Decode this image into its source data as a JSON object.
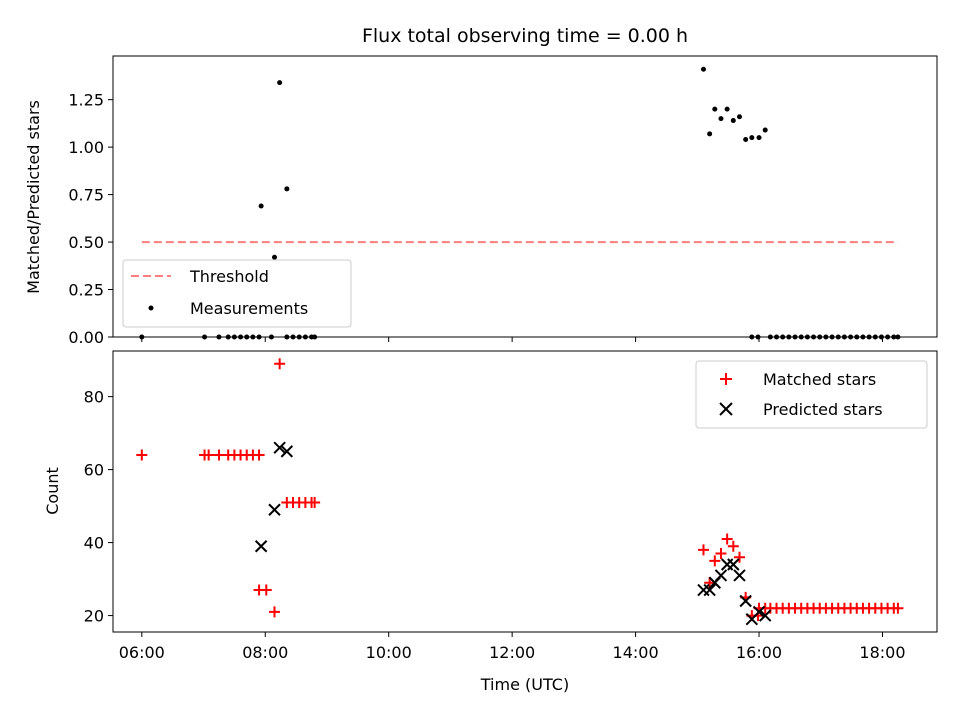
{
  "chart_data": [
    {
      "type": "scatter",
      "title": "Flux total observing time = 0.00 h",
      "xlabel": "",
      "ylabel": "Matched/Predicted stars",
      "xlim": [
        "05:32",
        "18:53"
      ],
      "ylim": [
        0.0,
        1.48
      ],
      "yticks": [
        "0.00",
        "0.25",
        "0.50",
        "0.75",
        "1.00",
        "1.25"
      ],
      "ytick_values": [
        0.0,
        0.25,
        0.5,
        0.75,
        1.0,
        1.25
      ],
      "legend": {
        "location": "lower-left",
        "entries": [
          "Threshold",
          "Measurements"
        ]
      },
      "threshold": {
        "name": "Threshold",
        "y": 0.5,
        "x_start": "06:00",
        "x_end": "18:15",
        "color": "#ff7f7f"
      },
      "measurements": {
        "name": "Measurements",
        "color": "#000000",
        "points": [
          [
            "06:00",
            0.0
          ],
          [
            "07:01",
            0.0
          ],
          [
            "07:15",
            0.0
          ],
          [
            "07:24",
            0.0
          ],
          [
            "07:30",
            0.0
          ],
          [
            "07:36",
            0.0
          ],
          [
            "07:42",
            0.0
          ],
          [
            "07:48",
            0.0
          ],
          [
            "07:54",
            0.0
          ],
          [
            "07:56",
            0.69
          ],
          [
            "08:06",
            0.0
          ],
          [
            "08:09",
            0.42
          ],
          [
            "08:14",
            1.34
          ],
          [
            "08:21",
            0.78
          ],
          [
            "08:21",
            0.0
          ],
          [
            "08:27",
            0.0
          ],
          [
            "08:33",
            0.0
          ],
          [
            "08:39",
            0.0
          ],
          [
            "08:45",
            0.0
          ],
          [
            "08:48",
            0.0
          ],
          [
            "15:06",
            1.41
          ],
          [
            "15:12",
            1.07
          ],
          [
            "15:17",
            1.2
          ],
          [
            "15:23",
            1.15
          ],
          [
            "15:29",
            1.2
          ],
          [
            "15:35",
            1.14
          ],
          [
            "15:41",
            1.16
          ],
          [
            "15:47",
            1.04
          ],
          [
            "15:53",
            1.05
          ],
          [
            "15:53",
            0.0
          ],
          [
            "15:59",
            0.0
          ],
          [
            "16:00",
            1.05
          ],
          [
            "16:06",
            1.09
          ],
          [
            "16:11",
            0.0
          ],
          [
            "16:17",
            0.0
          ],
          [
            "16:23",
            0.0
          ],
          [
            "16:29",
            0.0
          ],
          [
            "16:35",
            0.0
          ],
          [
            "16:41",
            0.0
          ],
          [
            "16:47",
            0.0
          ],
          [
            "16:53",
            0.0
          ],
          [
            "16:59",
            0.0
          ],
          [
            "17:05",
            0.0
          ],
          [
            "17:11",
            0.0
          ],
          [
            "17:17",
            0.0
          ],
          [
            "17:23",
            0.0
          ],
          [
            "17:29",
            0.0
          ],
          [
            "17:35",
            0.0
          ],
          [
            "17:41",
            0.0
          ],
          [
            "17:47",
            0.0
          ],
          [
            "17:53",
            0.0
          ],
          [
            "17:59",
            0.0
          ],
          [
            "18:05",
            0.0
          ],
          [
            "18:11",
            0.0
          ],
          [
            "18:15",
            0.0
          ]
        ]
      }
    },
    {
      "type": "scatter",
      "title": "",
      "xlabel": "Time (UTC)",
      "ylabel": "Count",
      "xlim": [
        "05:32",
        "18:53"
      ],
      "ylim": [
        15.5,
        92.5
      ],
      "yticks": [
        "20",
        "40",
        "60",
        "80"
      ],
      "ytick_values": [
        20,
        40,
        60,
        80
      ],
      "xticks": [
        "06:00",
        "08:00",
        "10:00",
        "12:00",
        "14:00",
        "16:00",
        "18:00"
      ],
      "legend": {
        "location": "top-right",
        "entries": [
          "Matched stars",
          "Predicted stars"
        ]
      },
      "series": [
        {
          "name": "Matched stars",
          "marker": "+",
          "color": "#ff0000",
          "points": [
            [
              "06:00",
              64
            ],
            [
              "07:01",
              64
            ],
            [
              "07:05",
              64
            ],
            [
              "07:15",
              64
            ],
            [
              "07:24",
              64
            ],
            [
              "07:30",
              64
            ],
            [
              "07:36",
              64
            ],
            [
              "07:42",
              64
            ],
            [
              "07:48",
              64
            ],
            [
              "07:54",
              64
            ],
            [
              "07:54",
              27
            ],
            [
              "08:01",
              27
            ],
            [
              "08:09",
              21
            ],
            [
              "08:14",
              89
            ],
            [
              "08:21",
              51
            ],
            [
              "08:27",
              51
            ],
            [
              "08:33",
              51
            ],
            [
              "08:39",
              51
            ],
            [
              "08:45",
              51
            ],
            [
              "08:48",
              51
            ],
            [
              "15:06",
              38
            ],
            [
              "15:12",
              29
            ],
            [
              "15:17",
              35
            ],
            [
              "15:23",
              37
            ],
            [
              "15:29",
              41
            ],
            [
              "15:35",
              39
            ],
            [
              "15:41",
              36
            ],
            [
              "15:47",
              25
            ],
            [
              "15:53",
              20
            ],
            [
              "15:59",
              20
            ],
            [
              "16:00",
              22
            ],
            [
              "16:06",
              22
            ],
            [
              "16:11",
              22
            ],
            [
              "16:17",
              22
            ],
            [
              "16:23",
              22
            ],
            [
              "16:29",
              22
            ],
            [
              "16:35",
              22
            ],
            [
              "16:41",
              22
            ],
            [
              "16:47",
              22
            ],
            [
              "16:53",
              22
            ],
            [
              "16:59",
              22
            ],
            [
              "17:05",
              22
            ],
            [
              "17:11",
              22
            ],
            [
              "17:17",
              22
            ],
            [
              "17:23",
              22
            ],
            [
              "17:29",
              22
            ],
            [
              "17:35",
              22
            ],
            [
              "17:41",
              22
            ],
            [
              "17:47",
              22
            ],
            [
              "17:53",
              22
            ],
            [
              "17:59",
              22
            ],
            [
              "18:05",
              22
            ],
            [
              "18:11",
              22
            ],
            [
              "18:15",
              22
            ]
          ]
        },
        {
          "name": "Predicted stars",
          "marker": "x",
          "color": "#000000",
          "points": [
            [
              "07:56",
              39
            ],
            [
              "08:09",
              49
            ],
            [
              "08:14",
              66
            ],
            [
              "08:21",
              65
            ],
            [
              "15:06",
              27
            ],
            [
              "15:12",
              27
            ],
            [
              "15:17",
              29
            ],
            [
              "15:23",
              31
            ],
            [
              "15:29",
              34
            ],
            [
              "15:35",
              34
            ],
            [
              "15:41",
              31
            ],
            [
              "15:47",
              24
            ],
            [
              "15:53",
              19
            ],
            [
              "16:00",
              21
            ],
            [
              "16:06",
              20
            ]
          ]
        }
      ]
    }
  ]
}
